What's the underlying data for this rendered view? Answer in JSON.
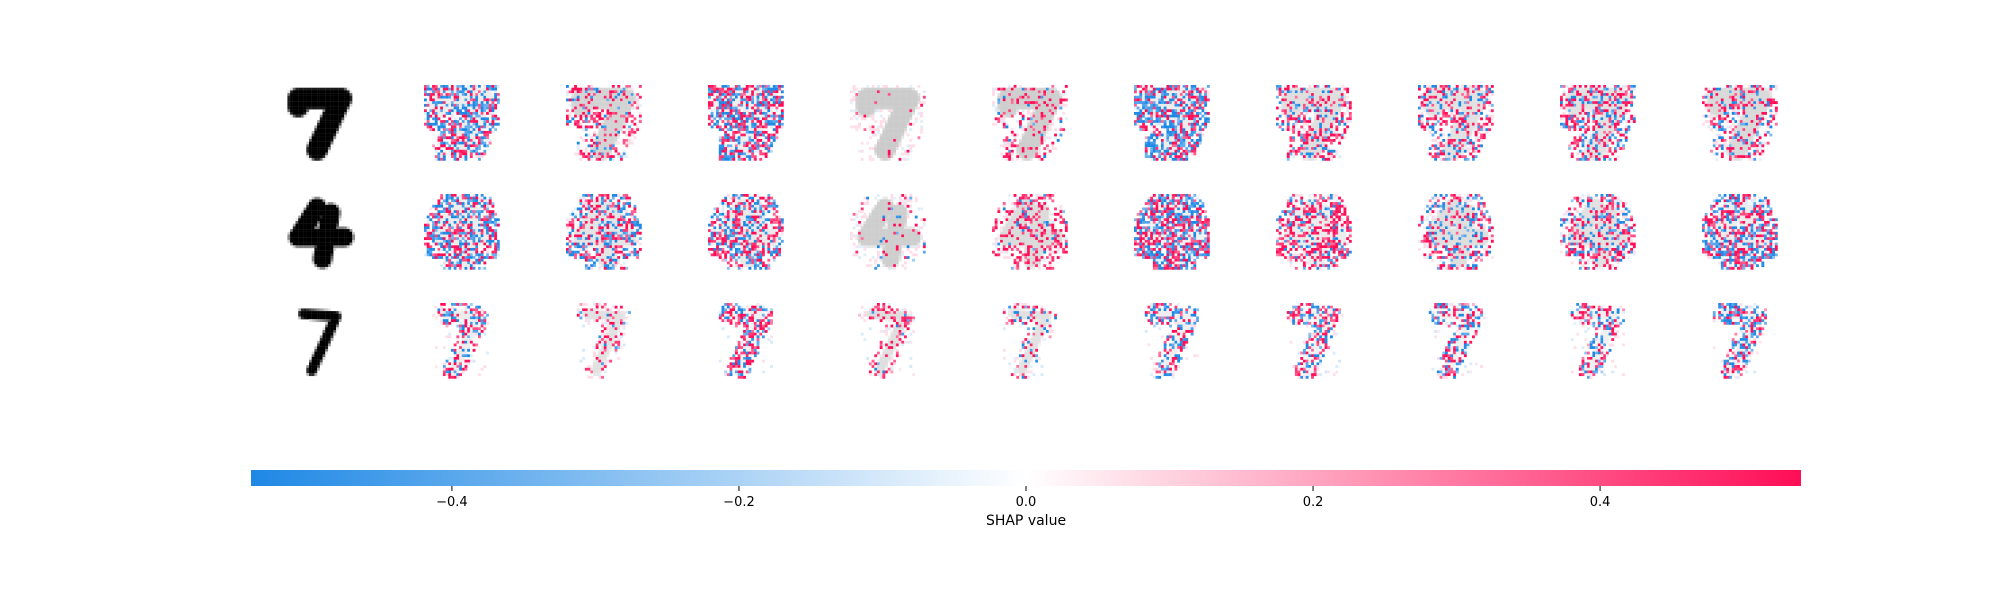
{
  "chart_data": {
    "type": "heatmap",
    "description_type": "image attribution grid",
    "rows": [
      {
        "digit": "7",
        "style": "bold",
        "panels": [
          {
            "neg": 0.55,
            "pos": 0.5,
            "ghost": 0.35
          },
          {
            "neg": 0.12,
            "pos": 0.4,
            "ghost": 0.8
          },
          {
            "neg": 0.55,
            "pos": 0.65,
            "ghost": 0.3
          },
          {
            "neg": 0.0,
            "pos": 0.05,
            "ghost": 0.95
          },
          {
            "neg": 0.05,
            "pos": 0.25,
            "ghost": 0.9
          },
          {
            "neg": 0.7,
            "pos": 0.45,
            "ghost": 0.35
          },
          {
            "neg": 0.2,
            "pos": 0.45,
            "ghost": 0.6
          },
          {
            "neg": 0.25,
            "pos": 0.45,
            "ghost": 0.55
          },
          {
            "neg": 0.3,
            "pos": 0.5,
            "ghost": 0.55
          },
          {
            "neg": 0.25,
            "pos": 0.35,
            "ghost": 0.7
          }
        ]
      },
      {
        "digit": "4",
        "style": "bold",
        "panels": [
          {
            "neg": 0.55,
            "pos": 0.45,
            "ghost": 0.35
          },
          {
            "neg": 0.4,
            "pos": 0.4,
            "ghost": 0.5
          },
          {
            "neg": 0.45,
            "pos": 0.55,
            "ghost": 0.4
          },
          {
            "neg": 0.05,
            "pos": 0.08,
            "ghost": 0.9
          },
          {
            "neg": 0.1,
            "pos": 0.5,
            "ghost": 0.65
          },
          {
            "neg": 0.6,
            "pos": 0.65,
            "ghost": 0.25
          },
          {
            "neg": 0.25,
            "pos": 0.7,
            "ghost": 0.35
          },
          {
            "neg": 0.25,
            "pos": 0.35,
            "ghost": 0.6
          },
          {
            "neg": 0.3,
            "pos": 0.4,
            "ghost": 0.55
          },
          {
            "neg": 0.55,
            "pos": 0.55,
            "ghost": 0.35
          }
        ]
      },
      {
        "digit": "7",
        "style": "thin",
        "panels": [
          {
            "neg": 0.35,
            "pos": 0.4,
            "ghost": 0.35
          },
          {
            "neg": 0.1,
            "pos": 0.35,
            "ghost": 0.55
          },
          {
            "neg": 0.45,
            "pos": 0.6,
            "ghost": 0.25
          },
          {
            "neg": 0.05,
            "pos": 0.4,
            "ghost": 0.6
          },
          {
            "neg": 0.15,
            "pos": 0.25,
            "ghost": 0.55
          },
          {
            "neg": 0.45,
            "pos": 0.4,
            "ghost": 0.3
          },
          {
            "neg": 0.4,
            "pos": 0.5,
            "ghost": 0.25
          },
          {
            "neg": 0.35,
            "pos": 0.45,
            "ghost": 0.25
          },
          {
            "neg": 0.35,
            "pos": 0.4,
            "ghost": 0.3
          },
          {
            "neg": 0.45,
            "pos": 0.45,
            "ghost": 0.3
          }
        ]
      }
    ],
    "colorbar": {
      "label": "SHAP value",
      "range": [
        -0.54,
        0.54
      ],
      "ticks": [
        -0.4,
        -0.2,
        0.0,
        0.2,
        0.4
      ],
      "tick_labels": [
        "−0.4",
        "−0.2",
        "0.0",
        "0.2",
        "0.4"
      ],
      "colormap": "shap red-white-blue",
      "neg_color": "#1e88e5",
      "mid_color": "#ffffff",
      "pos_color": "#ff0d57",
      "ghost_color": "#c8c8c8"
    }
  }
}
